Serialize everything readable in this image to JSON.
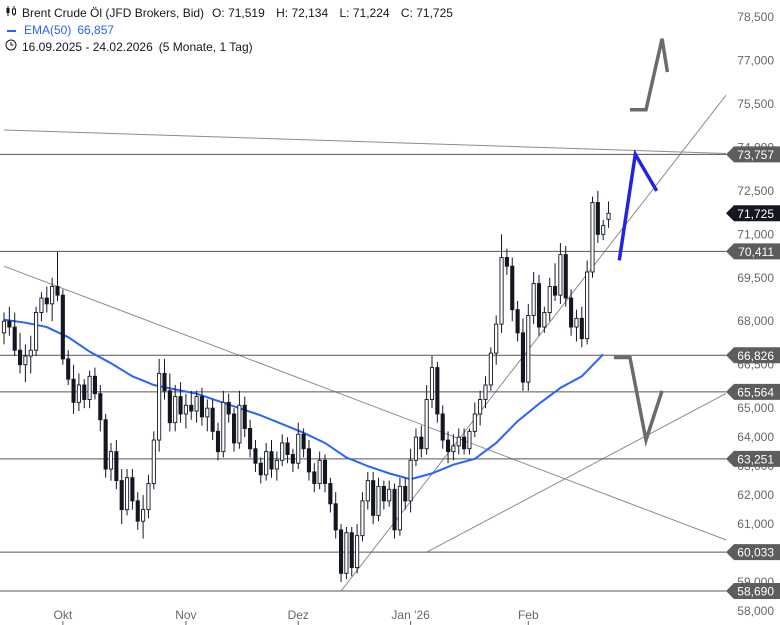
{
  "legend": {
    "symbol": "Brent Crude Öl (JFD Brokers, Bid)",
    "open_label": "O:",
    "open": "71,519",
    "high_label": "H:",
    "high": "72,134",
    "low_label": "L:",
    "low": "71,224",
    "close_label": "C:",
    "close": "71,725",
    "ema_label": "EMA(50)",
    "ema_value": "66,857",
    "range": "16.09.2025 - 24.02.2026",
    "interval": "(5 Monate, 1 Tag)"
  },
  "colors": {
    "up": "#ffffff",
    "down": "#131722",
    "candle_outline": "#131722",
    "ema": "#2962ff",
    "projection_blue": "#2424e0",
    "projection_gray": "#6b6b6b",
    "level_line": "#555555",
    "level_badge": "#5d5d5d",
    "last_price_badge": "#131722",
    "trendline": "#8c8c8c",
    "axis_text": "#666666"
  },
  "chart_data": {
    "type": "candlestick",
    "title": "Brent Crude Öl (JFD Brokers, Bid)",
    "ylim": [
      58000,
      78600
    ],
    "y_ticks": [
      {
        "v": 78500,
        "label": "78,500"
      },
      {
        "v": 77000,
        "label": "77,000"
      },
      {
        "v": 75500,
        "label": "75,500"
      },
      {
        "v": 74000,
        "label": "74,000"
      },
      {
        "v": 72500,
        "label": "72,500"
      },
      {
        "v": 71000,
        "label": "71,000"
      },
      {
        "v": 69500,
        "label": "69,500"
      },
      {
        "v": 68000,
        "label": "68,000"
      },
      {
        "v": 66500,
        "label": "66,500"
      },
      {
        "v": 65000,
        "label": "65,000"
      },
      {
        "v": 64000,
        "label": "64,000"
      },
      {
        "v": 63000,
        "label": "63,000"
      },
      {
        "v": 62000,
        "label": "62,000"
      },
      {
        "v": 61000,
        "label": "61,000"
      },
      {
        "v": 59000,
        "label": "59,000"
      },
      {
        "v": 58000,
        "label": "58,000"
      }
    ],
    "x_ticks": [
      {
        "i": 11,
        "label": "Okt"
      },
      {
        "i": 34,
        "label": "Nov"
      },
      {
        "i": 55,
        "label": "Dez"
      },
      {
        "i": 76,
        "label": "Jan '26"
      },
      {
        "i": 98,
        "label": "Feb"
      }
    ],
    "ohlc": [
      [
        67.6,
        68.3,
        67.2,
        68.0
      ],
      [
        68.0,
        68.5,
        67.5,
        67.8
      ],
      [
        67.8,
        68.3,
        66.8,
        67.0
      ],
      [
        67.0,
        67.6,
        66.2,
        66.5
      ],
      [
        66.5,
        67.2,
        65.9,
        66.8
      ],
      [
        66.8,
        67.5,
        66.2,
        67.0
      ],
      [
        67.0,
        68.5,
        66.8,
        68.3
      ],
      [
        68.3,
        69.0,
        68.0,
        68.8
      ],
      [
        68.8,
        69.2,
        68.3,
        68.6
      ],
      [
        68.6,
        69.5,
        68.0,
        69.2
      ],
      [
        69.2,
        70.4,
        68.7,
        68.9
      ],
      [
        68.9,
        69.1,
        66.5,
        66.7
      ],
      [
        66.7,
        67.0,
        65.8,
        66.0
      ],
      [
        66.0,
        66.5,
        64.8,
        65.2
      ],
      [
        65.2,
        66.2,
        64.9,
        65.8
      ],
      [
        65.8,
        66.0,
        65.0,
        65.3
      ],
      [
        65.3,
        66.3,
        65.0,
        66.1
      ],
      [
        66.1,
        66.4,
        65.3,
        65.5
      ],
      [
        65.5,
        65.8,
        64.2,
        64.6
      ],
      [
        64.6,
        64.8,
        62.6,
        62.9
      ],
      [
        62.9,
        63.8,
        62.5,
        63.5
      ],
      [
        63.5,
        63.9,
        62.2,
        62.5
      ],
      [
        62.5,
        62.9,
        61.0,
        61.5
      ],
      [
        61.5,
        62.9,
        61.3,
        62.6
      ],
      [
        62.6,
        62.9,
        61.5,
        61.8
      ],
      [
        61.8,
        62.1,
        60.8,
        61.1
      ],
      [
        61.1,
        62.0,
        60.5,
        61.5
      ],
      [
        61.5,
        62.7,
        61.2,
        62.4
      ],
      [
        62.4,
        64.2,
        62.2,
        63.9
      ],
      [
        63.9,
        66.7,
        63.5,
        66.2
      ],
      [
        66.2,
        66.7,
        65.3,
        65.6
      ],
      [
        65.6,
        66.2,
        64.2,
        64.5
      ],
      [
        64.5,
        65.8,
        64.2,
        65.4
      ],
      [
        65.4,
        65.9,
        64.5,
        64.8
      ],
      [
        64.8,
        65.5,
        64.3,
        65.1
      ],
      [
        65.1,
        65.6,
        64.6,
        64.9
      ],
      [
        64.9,
        65.6,
        64.5,
        65.4
      ],
      [
        65.4,
        65.7,
        64.4,
        64.7
      ],
      [
        64.7,
        65.3,
        64.2,
        65.0
      ],
      [
        65.0,
        65.3,
        63.9,
        64.2
      ],
      [
        64.2,
        64.5,
        63.2,
        63.5
      ],
      [
        63.5,
        65.6,
        63.3,
        65.2
      ],
      [
        65.2,
        65.5,
        64.5,
        64.8
      ],
      [
        64.8,
        65.0,
        63.5,
        63.8
      ],
      [
        63.8,
        65.6,
        63.6,
        65.1
      ],
      [
        65.1,
        65.4,
        64.0,
        64.3
      ],
      [
        64.3,
        64.6,
        63.3,
        63.6
      ],
      [
        63.6,
        63.9,
        62.8,
        63.1
      ],
      [
        63.1,
        63.3,
        62.4,
        62.7
      ],
      [
        62.7,
        63.8,
        62.5,
        63.5
      ],
      [
        63.5,
        63.9,
        62.6,
        62.9
      ],
      [
        62.9,
        63.5,
        62.5,
        63.2
      ],
      [
        63.2,
        64.1,
        63.0,
        63.8
      ],
      [
        63.8,
        64.0,
        63.1,
        63.4
      ],
      [
        63.4,
        63.6,
        62.8,
        63.1
      ],
      [
        63.1,
        64.5,
        62.9,
        64.1
      ],
      [
        64.1,
        64.3,
        63.3,
        63.6
      ],
      [
        63.6,
        63.9,
        62.5,
        62.8
      ],
      [
        62.8,
        63.1,
        62.1,
        62.4
      ],
      [
        62.4,
        63.5,
        62.2,
        63.2
      ],
      [
        63.2,
        63.4,
        62.1,
        62.4
      ],
      [
        62.4,
        62.6,
        61.4,
        61.7
      ],
      [
        61.7,
        62.1,
        60.5,
        60.8
      ],
      [
        60.8,
        61.0,
        59.0,
        59.3
      ],
      [
        59.3,
        60.9,
        59.1,
        60.7
      ],
      [
        60.7,
        60.9,
        59.2,
        59.5
      ],
      [
        59.5,
        61.0,
        59.3,
        60.6
      ],
      [
        60.6,
        62.1,
        60.4,
        61.8
      ],
      [
        61.8,
        62.8,
        61.5,
        62.5
      ],
      [
        62.5,
        62.8,
        61.0,
        61.3
      ],
      [
        61.3,
        62.6,
        61.1,
        62.3
      ],
      [
        62.3,
        62.5,
        61.5,
        61.8
      ],
      [
        61.8,
        62.5,
        61.6,
        62.2
      ],
      [
        62.2,
        62.4,
        60.5,
        60.8
      ],
      [
        60.8,
        62.6,
        60.6,
        62.3
      ],
      [
        62.3,
        62.6,
        61.5,
        61.8
      ],
      [
        61.8,
        63.6,
        61.4,
        63.2
      ],
      [
        63.2,
        64.3,
        63.0,
        64.0
      ],
      [
        64.0,
        64.4,
        63.3,
        63.6
      ],
      [
        63.6,
        65.8,
        63.4,
        65.3
      ],
      [
        65.3,
        66.8,
        65.0,
        66.4
      ],
      [
        66.4,
        66.6,
        64.5,
        64.8
      ],
      [
        64.8,
        65.1,
        63.6,
        63.9
      ],
      [
        63.9,
        64.2,
        63.1,
        63.5
      ],
      [
        63.5,
        64.1,
        63.2,
        63.7
      ],
      [
        63.7,
        64.3,
        63.4,
        64.0
      ],
      [
        64.0,
        64.3,
        63.4,
        63.6
      ],
      [
        63.6,
        64.3,
        63.4,
        64.2
      ],
      [
        64.2,
        65.2,
        64.0,
        64.8
      ],
      [
        64.8,
        65.6,
        64.4,
        65.3
      ],
      [
        65.3,
        66.1,
        65.0,
        65.8
      ],
      [
        65.8,
        67.1,
        65.6,
        66.9
      ],
      [
        66.9,
        68.2,
        66.5,
        67.9
      ],
      [
        67.9,
        71.0,
        67.6,
        70.2
      ],
      [
        70.2,
        70.5,
        69.6,
        69.9
      ],
      [
        69.9,
        70.2,
        68.0,
        68.4
      ],
      [
        68.4,
        68.7,
        67.3,
        67.6
      ],
      [
        67.6,
        68.1,
        65.6,
        65.9
      ],
      [
        65.9,
        68.6,
        65.6,
        68.2
      ],
      [
        68.2,
        69.7,
        67.9,
        69.3
      ],
      [
        69.3,
        69.6,
        67.5,
        67.8
      ],
      [
        67.8,
        68.5,
        67.6,
        68.3
      ],
      [
        68.3,
        69.5,
        68.0,
        69.2
      ],
      [
        69.2,
        70.0,
        68.7,
        68.9
      ],
      [
        68.9,
        70.7,
        68.6,
        70.3
      ],
      [
        70.3,
        70.6,
        68.5,
        68.8
      ],
      [
        68.8,
        69.1,
        67.5,
        67.8
      ],
      [
        67.8,
        68.4,
        67.3,
        68.1
      ],
      [
        68.1,
        68.5,
        67.1,
        67.4
      ],
      [
        67.4,
        70.1,
        67.2,
        69.7
      ],
      [
        69.7,
        72.3,
        69.5,
        72.1
      ],
      [
        72.1,
        72.5,
        70.7,
        71.0
      ],
      [
        71.0,
        71.5,
        70.8,
        71.3
      ],
      [
        71.519,
        72.134,
        71.224,
        71.725
      ]
    ],
    "ema50": [
      [
        0,
        68.05
      ],
      [
        4,
        67.95
      ],
      [
        8,
        67.8
      ],
      [
        12,
        67.45
      ],
      [
        16,
        66.95
      ],
      [
        20,
        66.55
      ],
      [
        24,
        66.1
      ],
      [
        28,
        65.8
      ],
      [
        32,
        65.65
      ],
      [
        36,
        65.5
      ],
      [
        40,
        65.25
      ],
      [
        44,
        65.0
      ],
      [
        48,
        64.75
      ],
      [
        52,
        64.45
      ],
      [
        56,
        64.15
      ],
      [
        60,
        63.8
      ],
      [
        64,
        63.3
      ],
      [
        68,
        63.0
      ],
      [
        72,
        62.75
      ],
      [
        76,
        62.55
      ],
      [
        80,
        62.75
      ],
      [
        84,
        63.05
      ],
      [
        88,
        63.25
      ],
      [
        92,
        63.8
      ],
      [
        96,
        64.55
      ],
      [
        100,
        65.15
      ],
      [
        104,
        65.7
      ],
      [
        108,
        66.1
      ],
      [
        112,
        66.857
      ]
    ],
    "levels": [
      {
        "v": 73757,
        "label": "73,757"
      },
      {
        "v": 70411,
        "label": "70,411"
      },
      {
        "v": 66826,
        "label": "66,826"
      },
      {
        "v": 65564,
        "label": "65,564"
      },
      {
        "v": 63251,
        "label": "63,251"
      },
      {
        "v": 60033,
        "label": "60,033"
      },
      {
        "v": 58690,
        "label": "58,690"
      }
    ],
    "last_price": {
      "v": 71725,
      "label": "71,725"
    },
    "trendlines": [
      [
        [
          0,
          74.6
        ],
        [
          140,
          73.76
        ]
      ],
      [
        [
          0,
          69.9
        ],
        [
          140,
          60.1
        ]
      ],
      [
        [
          63,
          58.69
        ],
        [
          140,
          77.0
        ]
      ],
      [
        [
          79,
          60.03
        ],
        [
          140,
          66.0
        ]
      ]
    ],
    "projection_blue": [
      [
        115,
        70.1
      ],
      [
        118,
        73.76
      ],
      [
        122,
        72.5
      ]
    ],
    "projection_gray_up": [
      [
        117,
        75.3
      ],
      [
        120,
        75.3
      ],
      [
        123,
        77.75
      ],
      [
        124,
        76.6
      ]
    ],
    "projection_gray_down": [
      [
        114,
        66.75
      ],
      [
        117,
        66.75
      ],
      [
        120,
        63.9
      ],
      [
        123,
        65.6
      ]
    ]
  }
}
